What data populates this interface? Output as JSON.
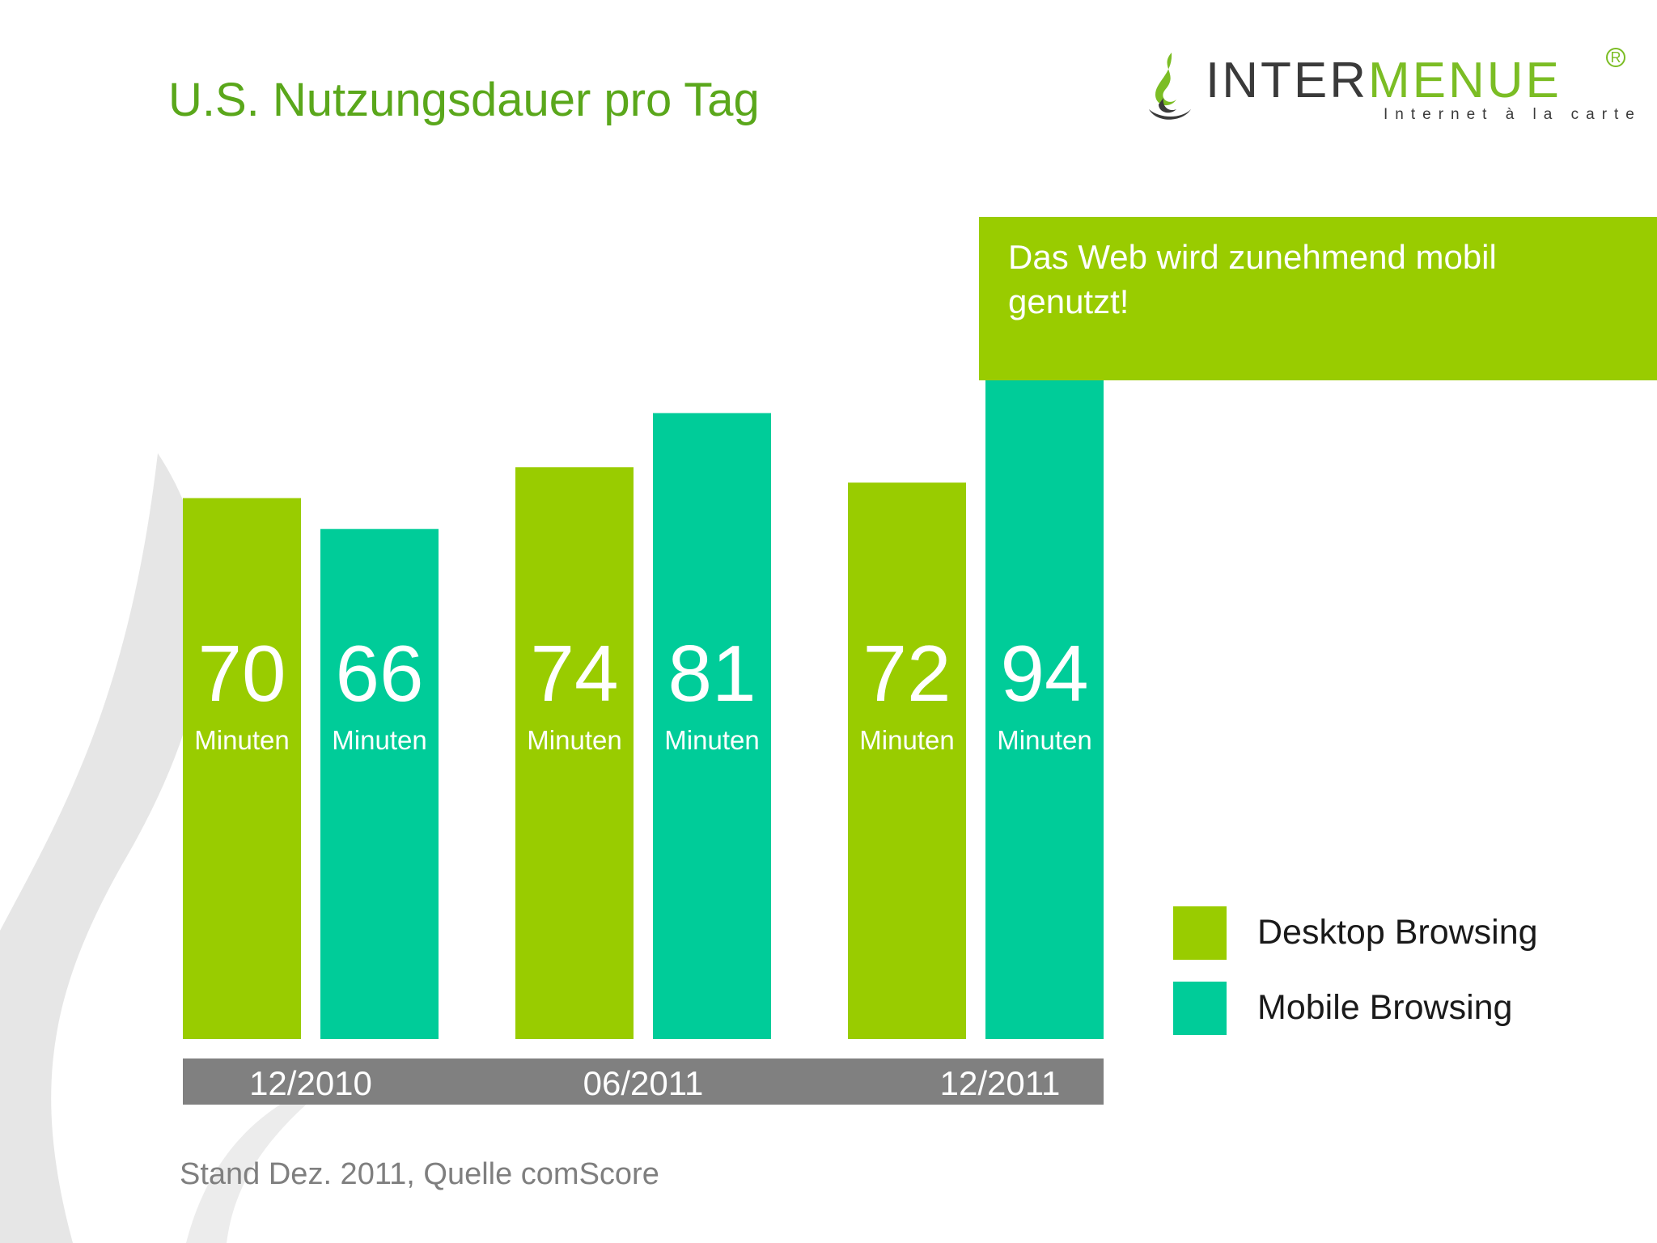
{
  "header": {
    "title": "U.S. Nutzungsdauer pro Tag"
  },
  "logo": {
    "brand_dark": "INTER",
    "brand_green": "MENUE",
    "tagline": "Internet à la carte",
    "registered_mark": "R"
  },
  "callout": {
    "text": "Das Web wird zunehmend mobil genutzt!"
  },
  "footer": {
    "source": "Stand Dez. 2011, Quelle comScore"
  },
  "colors": {
    "desktop": "#99cc00",
    "mobile": "#00cc99",
    "axis_band": "#808080",
    "title": "#5aa71b",
    "logo_green": "#7bbd24"
  },
  "chart_data": {
    "type": "bar",
    "categories": [
      "12/2010",
      "06/2011",
      "12/2011"
    ],
    "series": [
      {
        "name": "Desktop Browsing",
        "values": [
          70,
          74,
          72
        ]
      },
      {
        "name": "Mobile Browsing",
        "values": [
          66,
          81,
          94
        ]
      }
    ],
    "value_unit": "Minuten",
    "title": "U.S. Nutzungsdauer pro Tag",
    "xlabel": "",
    "ylabel": "",
    "grid": false,
    "legend_position": "right"
  }
}
